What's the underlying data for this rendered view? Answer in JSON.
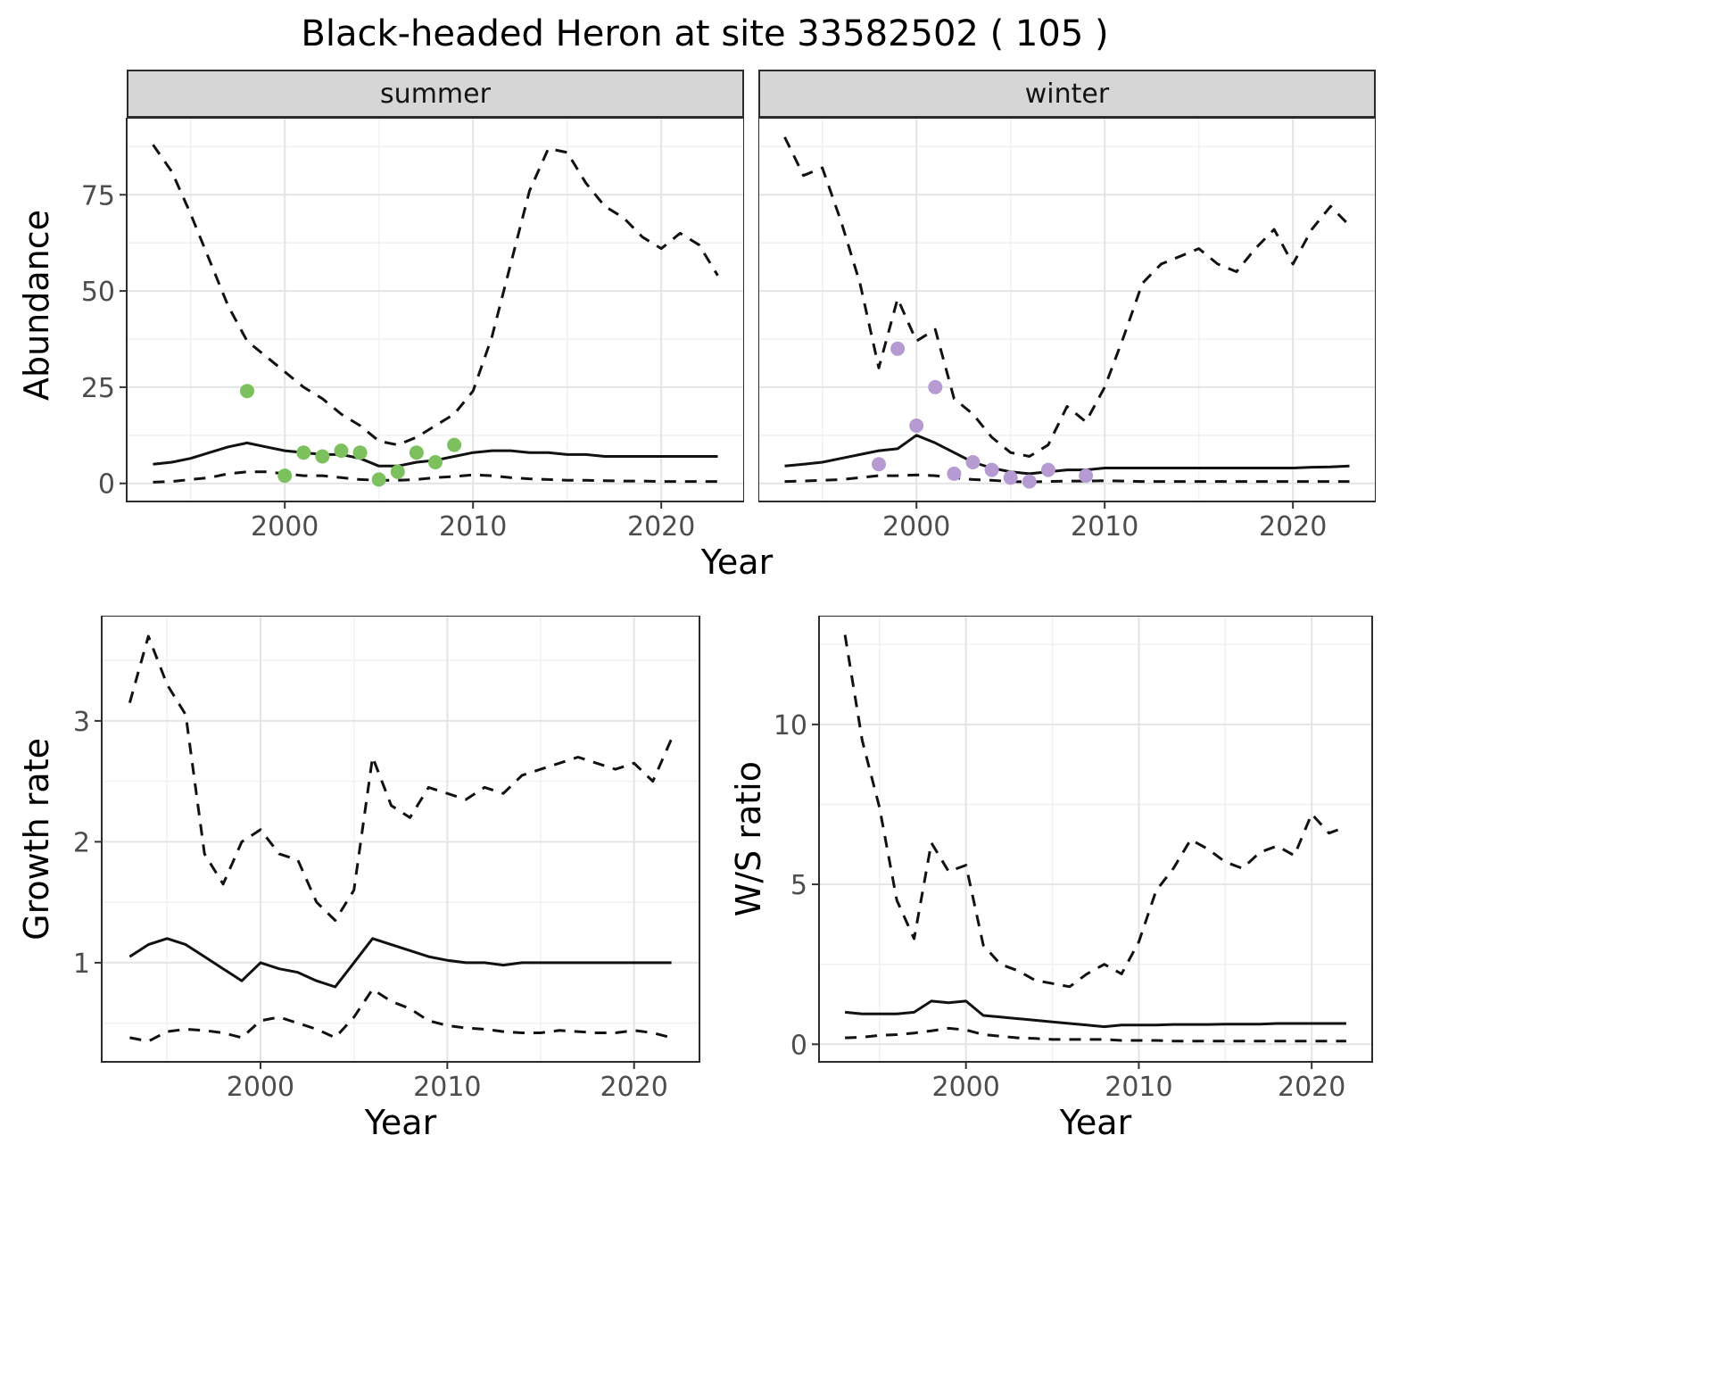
{
  "title": "Black-headed Heron at site 33582502 ( 105 )",
  "style": {
    "line_color": "#111111",
    "border_color": "#2B2B2B",
    "grid_major": "#E4E4E4",
    "grid_minor": "#F1F1F1",
    "tick_color": "#333333",
    "tick_label_color": "#4D4D4D",
    "strip_bg": "#D6D6D6",
    "summer_point_color": "#7CC15E",
    "winter_point_color": "#B69BD3"
  },
  "chart_data": [
    {
      "id": "abundance-summer",
      "type": "line",
      "facet": "summer",
      "ylabel": "Abundance",
      "xlabel": "Year",
      "grid": true,
      "xlim": [
        1991.6,
        2024.4
      ],
      "ylim": [
        -4.7,
        95
      ],
      "xticks": [
        2000,
        2010,
        2020
      ],
      "yticks": [
        0,
        25,
        50,
        75
      ],
      "xminor": [
        1995,
        2005,
        2015
      ],
      "yminor": [
        12.5,
        37.5,
        62.5,
        87.5
      ],
      "x": [
        1993,
        1994,
        1995,
        1996,
        1997,
        1998,
        1999,
        2000,
        2001,
        2002,
        2003,
        2004,
        2005,
        2006,
        2007,
        2008,
        2009,
        2010,
        2011,
        2012,
        2013,
        2014,
        2015,
        2016,
        2017,
        2018,
        2019,
        2020,
        2021,
        2022,
        2023
      ],
      "series": [
        {
          "name": "upper-95ci",
          "style": "dashed",
          "values": [
            88,
            81,
            70,
            58,
            46,
            37,
            33,
            29,
            25,
            22,
            18,
            15,
            11,
            10,
            12,
            15,
            18,
            24,
            38,
            57,
            76,
            87,
            86,
            78,
            72,
            69,
            64,
            61,
            65,
            62,
            54
          ]
        },
        {
          "name": "estimate",
          "style": "solid",
          "values": [
            5,
            5.5,
            6.5,
            8,
            9.5,
            10.5,
            9.5,
            8.5,
            8,
            7.5,
            7.5,
            6.5,
            4.5,
            4.5,
            5.5,
            6,
            7,
            8,
            8.5,
            8.5,
            8,
            8,
            7.5,
            7.5,
            7,
            7,
            7,
            7,
            7,
            7,
            7
          ]
        },
        {
          "name": "lower-95ci",
          "style": "dashed",
          "values": [
            0.3,
            0.5,
            1,
            1.5,
            2.5,
            3,
            3,
            2.5,
            2,
            2,
            1.5,
            1,
            0.8,
            0.8,
            1,
            1.5,
            1.8,
            2.2,
            2,
            1.5,
            1.2,
            1,
            0.8,
            0.8,
            0.7,
            0.6,
            0.6,
            0.5,
            0.5,
            0.5,
            0.5
          ]
        }
      ],
      "points": {
        "name": "observed-summer-counts",
        "color": "#7CC15E",
        "x": [
          1998,
          2000,
          2001,
          2002,
          2003,
          2004,
          2005,
          2006,
          2007,
          2008,
          2009
        ],
        "values": [
          24,
          2,
          8,
          7,
          8.5,
          8,
          1,
          3,
          8,
          5.5,
          10
        ]
      }
    },
    {
      "id": "abundance-winter",
      "type": "line",
      "facet": "winter",
      "ylabel": "Abundance",
      "xlabel": "Year",
      "grid": true,
      "xlim": [
        1991.6,
        2024.4
      ],
      "ylim": [
        -4.7,
        95
      ],
      "xticks": [
        2000,
        2010,
        2020
      ],
      "yticks": [
        0,
        25,
        50,
        75
      ],
      "xminor": [
        1995,
        2005,
        2015
      ],
      "yminor": [
        12.5,
        37.5,
        62.5,
        87.5
      ],
      "x": [
        1993,
        1994,
        1995,
        1996,
        1997,
        1998,
        1999,
        2000,
        2001,
        2002,
        2003,
        2004,
        2005,
        2006,
        2007,
        2008,
        2009,
        2010,
        2011,
        2012,
        2013,
        2014,
        2015,
        2016,
        2017,
        2018,
        2019,
        2020,
        2021,
        2022,
        2023
      ],
      "series": [
        {
          "name": "upper-95ci",
          "style": "dashed",
          "values": [
            90,
            80,
            82,
            68,
            52,
            30,
            48,
            37,
            40,
            22,
            18,
            12,
            8,
            7,
            10,
            20,
            16,
            25,
            38,
            52,
            57,
            59,
            61,
            57,
            55,
            61,
            66,
            57,
            66,
            72,
            67
          ]
        },
        {
          "name": "estimate",
          "style": "solid",
          "values": [
            4.5,
            5,
            5.5,
            6.5,
            7.5,
            8.5,
            9,
            12.5,
            10.5,
            8,
            5.5,
            4,
            3,
            2.5,
            3,
            3.5,
            3.5,
            4,
            4,
            4,
            4,
            4,
            4,
            4,
            4,
            4,
            4,
            4,
            4.2,
            4.3,
            4.5
          ]
        },
        {
          "name": "lower-95ci",
          "style": "dashed",
          "values": [
            0.5,
            0.6,
            0.8,
            1,
            1.5,
            2,
            2,
            2.2,
            2,
            1.5,
            1,
            0.8,
            0.5,
            0.4,
            0.5,
            0.6,
            0.6,
            0.7,
            0.6,
            0.5,
            0.5,
            0.5,
            0.5,
            0.5,
            0.5,
            0.5,
            0.5,
            0.5,
            0.5,
            0.5,
            0.5
          ]
        }
      ],
      "points": {
        "name": "observed-winter-counts",
        "color": "#B69BD3",
        "x": [
          1998,
          1999,
          2000,
          2001,
          2002,
          2003,
          2004,
          2005,
          2006,
          2007,
          2009
        ],
        "values": [
          5,
          35,
          15,
          25,
          2.5,
          5.5,
          3.5,
          1.5,
          0.5,
          3.5,
          2
        ]
      }
    },
    {
      "id": "growth-rate",
      "type": "line",
      "facet": "",
      "ylabel": "Growth rate",
      "xlabel": "Year",
      "grid": true,
      "xlim": [
        1991.5,
        2023.5
      ],
      "ylim": [
        0.18,
        3.87
      ],
      "xticks": [
        2000,
        2010,
        2020
      ],
      "yticks": [
        1,
        2,
        3
      ],
      "xminor": [
        1995,
        2005,
        2015
      ],
      "yminor": [
        0.5,
        1.5,
        2.5,
        3.5
      ],
      "x": [
        1993,
        1994,
        1995,
        1996,
        1997,
        1998,
        1999,
        2000,
        2001,
        2002,
        2003,
        2004,
        2005,
        2006,
        2007,
        2008,
        2009,
        2010,
        2011,
        2012,
        2013,
        2014,
        2015,
        2016,
        2017,
        2018,
        2019,
        2020,
        2021,
        2022
      ],
      "series": [
        {
          "name": "upper-95ci",
          "style": "dashed",
          "values": [
            3.15,
            3.7,
            3.3,
            3.05,
            1.9,
            1.65,
            2.0,
            2.1,
            1.9,
            1.85,
            1.5,
            1.35,
            1.6,
            2.7,
            2.3,
            2.2,
            2.45,
            2.4,
            2.35,
            2.45,
            2.4,
            2.55,
            2.6,
            2.65,
            2.7,
            2.65,
            2.6,
            2.65,
            2.5,
            2.85
          ]
        },
        {
          "name": "estimate",
          "style": "solid",
          "values": [
            1.05,
            1.15,
            1.2,
            1.15,
            1.05,
            0.95,
            0.85,
            1.0,
            0.95,
            0.92,
            0.85,
            0.8,
            1.0,
            1.2,
            1.15,
            1.1,
            1.05,
            1.02,
            1.0,
            1.0,
            0.98,
            1.0,
            1.0,
            1.0,
            1.0,
            1.0,
            1.0,
            1.0,
            1.0,
            1.0
          ]
        },
        {
          "name": "lower-95ci",
          "style": "dashed",
          "values": [
            0.38,
            0.35,
            0.43,
            0.45,
            0.44,
            0.42,
            0.38,
            0.52,
            0.55,
            0.5,
            0.45,
            0.38,
            0.55,
            0.78,
            0.68,
            0.62,
            0.52,
            0.48,
            0.46,
            0.45,
            0.43,
            0.42,
            0.42,
            0.44,
            0.43,
            0.42,
            0.42,
            0.44,
            0.42,
            0.38
          ]
        }
      ]
    },
    {
      "id": "ws-ratio",
      "type": "line",
      "facet": "",
      "ylabel": "W/S ratio",
      "xlabel": "Year",
      "grid": true,
      "xlim": [
        1991.5,
        2023.5
      ],
      "ylim": [
        -0.55,
        13.4
      ],
      "xticks": [
        2000,
        2010,
        2020
      ],
      "yticks": [
        0,
        5,
        10
      ],
      "xminor": [
        1995,
        2005,
        2015
      ],
      "yminor": [
        2.5,
        7.5,
        12.5
      ],
      "x": [
        1993,
        1994,
        1995,
        1996,
        1997,
        1998,
        1999,
        2000,
        2001,
        2002,
        2003,
        2004,
        2005,
        2006,
        2007,
        2008,
        2009,
        2010,
        2011,
        2012,
        2013,
        2014,
        2015,
        2016,
        2017,
        2018,
        2019,
        2020,
        2021,
        2022
      ],
      "series": [
        {
          "name": "upper-95ci",
          "style": "dashed",
          "values": [
            12.8,
            9.5,
            7.4,
            4.5,
            3.3,
            6.3,
            5.4,
            5.6,
            3.1,
            2.5,
            2.3,
            2.0,
            1.9,
            1.8,
            2.2,
            2.5,
            2.2,
            3.2,
            4.8,
            5.5,
            6.4,
            6.1,
            5.7,
            5.5,
            6.0,
            6.2,
            5.9,
            7.2,
            6.6,
            6.8
          ]
        },
        {
          "name": "estimate",
          "style": "solid",
          "values": [
            1.0,
            0.95,
            0.95,
            0.95,
            1.0,
            1.35,
            1.3,
            1.35,
            0.9,
            0.85,
            0.8,
            0.75,
            0.7,
            0.65,
            0.6,
            0.55,
            0.6,
            0.6,
            0.6,
            0.62,
            0.62,
            0.62,
            0.63,
            0.63,
            0.63,
            0.65,
            0.65,
            0.65,
            0.65,
            0.65
          ]
        },
        {
          "name": "lower-95ci",
          "style": "dashed",
          "values": [
            0.2,
            0.22,
            0.28,
            0.3,
            0.35,
            0.42,
            0.5,
            0.45,
            0.3,
            0.25,
            0.2,
            0.18,
            0.15,
            0.15,
            0.15,
            0.15,
            0.12,
            0.12,
            0.12,
            0.1,
            0.1,
            0.1,
            0.1,
            0.1,
            0.1,
            0.1,
            0.1,
            0.1,
            0.1,
            0.1
          ]
        }
      ]
    }
  ]
}
